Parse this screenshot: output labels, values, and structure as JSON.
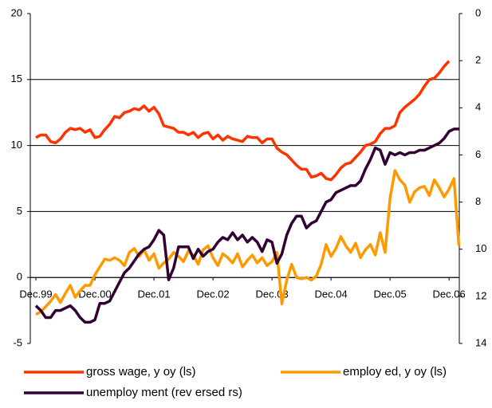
{
  "chart_data": {
    "type": "line",
    "categories": [
      "Dec.99",
      null,
      null,
      null,
      null,
      null,
      null,
      null,
      null,
      null,
      null,
      null,
      "Dec.00",
      null,
      null,
      null,
      null,
      null,
      null,
      null,
      null,
      null,
      null,
      null,
      "Dec.01",
      null,
      null,
      null,
      null,
      null,
      null,
      null,
      null,
      null,
      null,
      null,
      "Dec.02",
      null,
      null,
      null,
      null,
      null,
      null,
      null,
      null,
      null,
      null,
      null,
      "Dec.03",
      null,
      null,
      null,
      null,
      null,
      null,
      null,
      null,
      null,
      null,
      null,
      "Dec.04",
      null,
      null,
      null,
      null,
      null,
      null,
      null,
      null,
      null,
      null,
      null,
      "Dec.05",
      null,
      null,
      null,
      null,
      null,
      null,
      null,
      null,
      null,
      null,
      null,
      "Dec.06",
      null,
      null
    ],
    "series": [
      {
        "name": "gross wage, y oy (ls)",
        "color": "#ff3300",
        "values": [
          10.6,
          10.8,
          10.8,
          10.3,
          10.2,
          10.5,
          11.0,
          11.3,
          11.2,
          11.3,
          11.0,
          11.2,
          10.6,
          10.7,
          11.2,
          11.6,
          12.2,
          12.1,
          12.5,
          12.6,
          12.8,
          12.7,
          13.0,
          12.6,
          12.9,
          12.4,
          11.5,
          11.4,
          11.3,
          11.0,
          11.0,
          10.8,
          11.0,
          10.6,
          10.9,
          11.0,
          10.5,
          10.8,
          10.4,
          10.7,
          10.5,
          10.4,
          10.3,
          10.7,
          10.6,
          10.6,
          10.2,
          10.5,
          10.5,
          9.8,
          9.5,
          9.3,
          8.9,
          8.5,
          8.2,
          8.2,
          7.6,
          7.7,
          7.9,
          7.5,
          7.4,
          7.8,
          8.3,
          8.6,
          8.7,
          9.1,
          9.5,
          10.0,
          10.1,
          10.3,
          10.9,
          11.3,
          11.3,
          11.5,
          12.5,
          12.9,
          13.2,
          13.5,
          13.9,
          14.5,
          15.0,
          15.1,
          15.5,
          16.0,
          16.4,
          null,
          null
        ]
      },
      {
        "name": "employ ed, y oy (ls)",
        "color": "#ff9900",
        "values": [
          -2.8,
          -2.6,
          -2.2,
          -1.8,
          -1.3,
          -1.9,
          -1.2,
          -0.6,
          -1.5,
          -1.0,
          -0.6,
          -0.6,
          0.2,
          0.8,
          1.4,
          1.3,
          1.5,
          1.3,
          0.9,
          1.9,
          2.2,
          1.6,
          2.1,
          1.3,
          1.8,
          0.7,
          1.1,
          1.4,
          1.9,
          1.6,
          1.2,
          2.0,
          1.7,
          1.0,
          2.1,
          2.4,
          1.5,
          0.9,
          1.8,
          1.5,
          1.1,
          1.8,
          0.8,
          1.3,
          1.7,
          1.1,
          1.5,
          0.9,
          1.2,
          1.9,
          -2.0,
          -0.2,
          1.0,
          0.0,
          -0.1,
          0.0,
          -0.2,
          0.1,
          1.0,
          2.5,
          1.6,
          2.2,
          3.1,
          2.4,
          1.9,
          2.6,
          1.5,
          2.1,
          2.5,
          1.7,
          3.4,
          1.9,
          6.0,
          8.1,
          7.4,
          7.0,
          5.7,
          6.5,
          6.8,
          6.9,
          6.2,
          7.4,
          6.8,
          6.1,
          6.7,
          7.5,
          2.4
        ]
      },
      {
        "name": "unemploy ment (rev ersed rs)",
        "color": "#330033",
        "axis": "y2",
        "values": [
          12.4,
          12.6,
          12.9,
          12.9,
          12.6,
          12.6,
          12.5,
          12.4,
          12.6,
          12.9,
          13.1,
          13.1,
          13.0,
          12.3,
          12.3,
          12.2,
          11.8,
          11.4,
          11.0,
          10.8,
          10.5,
          10.2,
          10.0,
          9.9,
          9.6,
          9.2,
          9.4,
          11.3,
          10.8,
          9.9,
          9.9,
          9.9,
          10.4,
          10.0,
          10.3,
          10.1,
          10.0,
          9.7,
          9.5,
          9.6,
          9.3,
          9.6,
          9.4,
          9.7,
          9.5,
          9.7,
          10.1,
          9.6,
          9.7,
          10.6,
          10.2,
          9.4,
          8.9,
          8.6,
          8.6,
          9.1,
          8.9,
          8.8,
          8.4,
          8.0,
          7.9,
          7.6,
          7.5,
          7.4,
          7.3,
          7.3,
          7.1,
          6.6,
          6.2,
          5.7,
          5.8,
          6.4,
          5.9,
          6.0,
          5.9,
          6.0,
          5.9,
          5.9,
          5.8,
          5.8,
          5.7,
          5.6,
          5.5,
          5.3,
          5.0,
          4.9,
          4.9
        ]
      }
    ],
    "ylim": [
      -5,
      20
    ],
    "yticks": [
      -5,
      0,
      5,
      10,
      15,
      20
    ],
    "y2lim": [
      14,
      0
    ],
    "y2ticks": [
      0,
      2,
      4,
      6,
      8,
      10,
      12,
      14
    ],
    "grid": true
  }
}
